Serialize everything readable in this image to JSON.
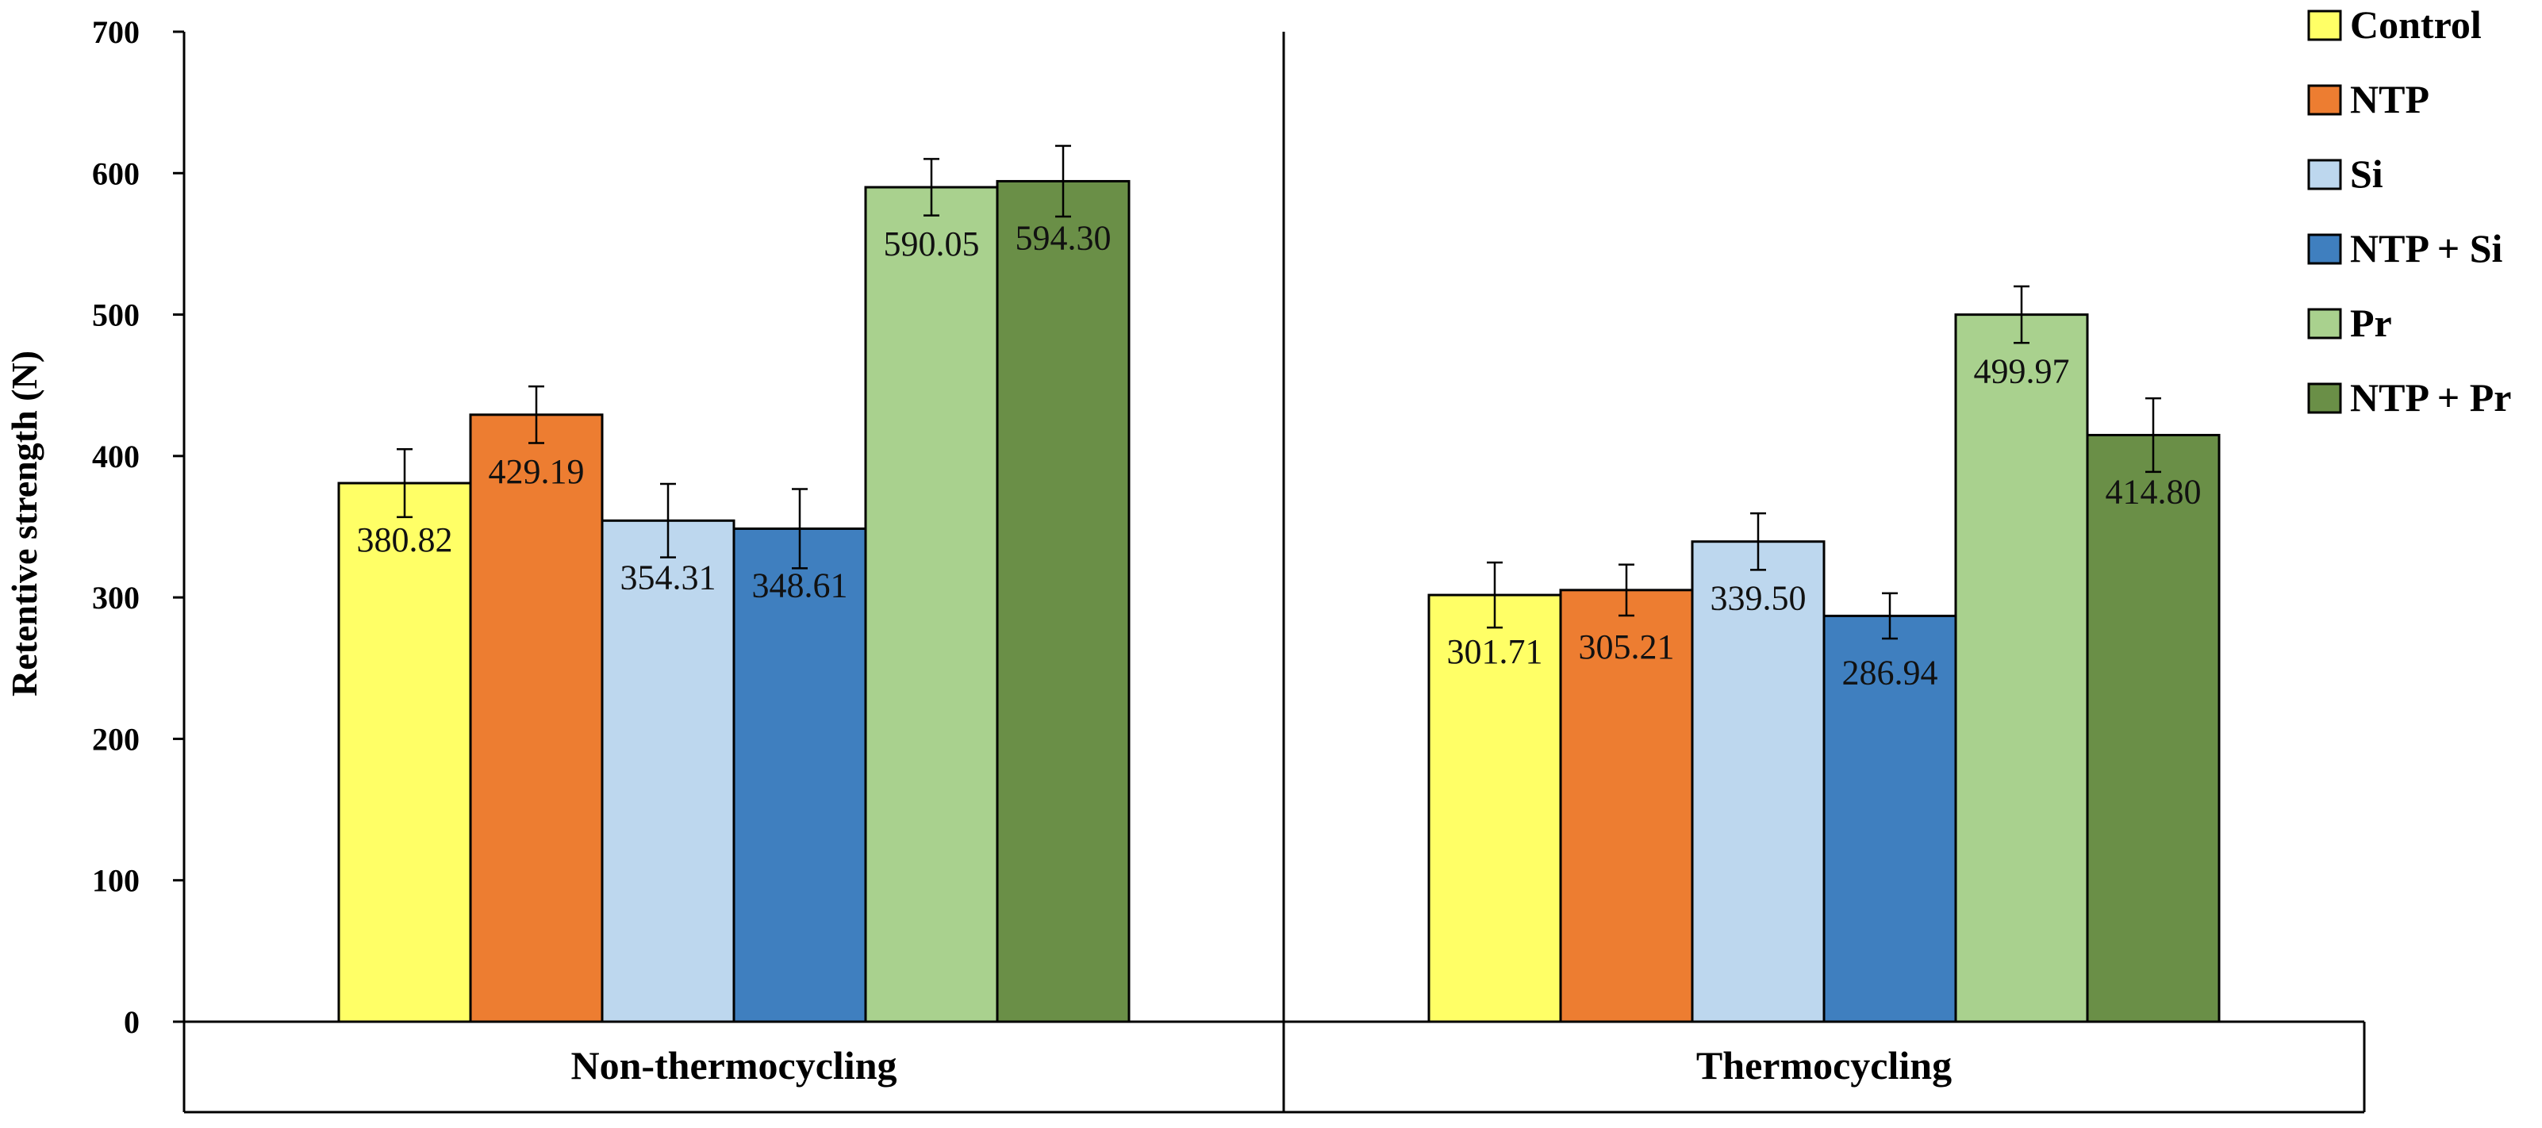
{
  "chart_data": {
    "type": "bar",
    "title": "",
    "xlabel": "",
    "ylabel": "Retentive strength (N)",
    "ylim": [
      0,
      700
    ],
    "yticks": [
      0,
      100,
      200,
      300,
      400,
      500,
      600,
      700
    ],
    "grid": false,
    "legend_position": "top-right",
    "categories": [
      "Non-thermocycling",
      "Thermocycling"
    ],
    "series": [
      {
        "name": "Control",
        "color": "#FFFF66",
        "values": [
          380.82,
          301.71
        ],
        "labels": [
          "380.82",
          "301.71"
        ],
        "errors": [
          24,
          23
        ]
      },
      {
        "name": "NTP",
        "color": "#ED7D31",
        "values": [
          429.19,
          305.21
        ],
        "labels": [
          "429.19",
          "305.21"
        ],
        "errors": [
          20,
          18
        ]
      },
      {
        "name": "Si",
        "color": "#BDD7EE",
        "values": [
          354.31,
          339.5
        ],
        "labels": [
          "354.31",
          "339.50"
        ],
        "errors": [
          26,
          20
        ]
      },
      {
        "name": "NTP + Si",
        "color": "#3F7FBF",
        "values": [
          348.61,
          286.94
        ],
        "labels": [
          "348.61",
          "286.94"
        ],
        "errors": [
          28,
          16
        ]
      },
      {
        "name": "Pr",
        "color": "#A9D18E",
        "values": [
          590.05,
          499.97
        ],
        "labels": [
          "590.05",
          "499.97"
        ],
        "errors": [
          20,
          20
        ]
      },
      {
        "name": "NTP + Pr",
        "color": "#6A8F47",
        "values": [
          594.3,
          414.8
        ],
        "labels": [
          "594.30",
          "414.80"
        ],
        "errors": [
          25,
          26
        ]
      }
    ]
  }
}
